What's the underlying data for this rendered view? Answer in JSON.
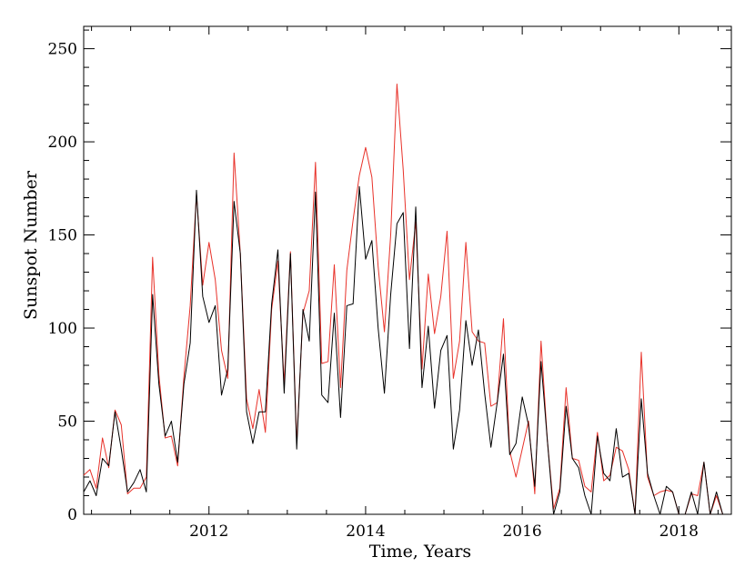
{
  "chart_data": {
    "type": "line",
    "title": "",
    "xlabel": "Time, Years",
    "ylabel": "Sunspot Number",
    "xlim": [
      2010.4,
      2018.67
    ],
    "ylim": [
      0,
      262
    ],
    "xticks": [
      2012,
      2014,
      2016,
      2018
    ],
    "yticks": [
      0,
      50,
      100,
      150,
      200,
      250
    ],
    "xtick_labels": [
      "2012",
      "2014",
      "2016",
      "2018"
    ],
    "ytick_labels": [
      "0",
      "50",
      "100",
      "150",
      "200",
      "250"
    ],
    "grid": false,
    "legend": "none",
    "series": [
      {
        "color": "#000000",
        "x": [
          2010.4,
          2010.48,
          2010.56,
          2010.64,
          2010.72,
          2010.8,
          2010.88,
          2010.96,
          2011.04,
          2011.12,
          2011.2,
          2011.28,
          2011.36,
          2011.44,
          2011.52,
          2011.6,
          2011.68,
          2011.76,
          2011.84,
          2011.92,
          2012.0,
          2012.08,
          2012.16,
          2012.24,
          2012.32,
          2012.4,
          2012.48,
          2012.56,
          2012.64,
          2012.72,
          2012.8,
          2012.88,
          2012.96,
          2013.04,
          2013.12,
          2013.2,
          2013.28,
          2013.36,
          2013.44,
          2013.52,
          2013.6,
          2013.68,
          2013.76,
          2013.84,
          2013.92,
          2014.0,
          2014.08,
          2014.16,
          2014.24,
          2014.32,
          2014.4,
          2014.48,
          2014.56,
          2014.64,
          2014.72,
          2014.8,
          2014.88,
          2014.96,
          2015.04,
          2015.12,
          2015.2,
          2015.28,
          2015.36,
          2015.44,
          2015.52,
          2015.6,
          2015.68,
          2015.76,
          2015.84,
          2015.92,
          2016.0,
          2016.08,
          2016.16,
          2016.24,
          2016.32,
          2016.4,
          2016.48,
          2016.56,
          2016.64,
          2016.72,
          2016.8,
          2016.88,
          2016.96,
          2017.04,
          2017.12,
          2017.2,
          2017.28,
          2017.36,
          2017.44,
          2017.52,
          2017.6,
          2017.68,
          2017.76,
          2017.84,
          2017.92,
          2018.0,
          2018.08,
          2018.16,
          2018.24,
          2018.32,
          2018.4,
          2018.48,
          2018.56,
          2018.64
        ],
        "y": [
          12,
          18,
          10,
          30,
          26,
          55,
          35,
          12,
          17,
          24,
          12,
          118,
          70,
          42,
          50,
          28,
          70,
          92,
          174,
          117,
          103,
          112,
          64,
          78,
          168,
          140,
          55,
          38,
          55,
          55,
          113,
          142,
          65,
          140,
          35,
          110,
          93,
          173,
          64,
          60,
          108,
          52,
          112,
          113,
          176,
          137,
          147,
          100,
          65,
          118,
          156,
          162,
          89,
          165,
          68,
          101,
          57,
          88,
          96,
          35,
          56,
          104,
          80,
          99,
          65,
          36,
          60,
          86,
          32,
          38,
          63,
          48,
          15,
          82,
          40,
          0,
          12,
          58,
          30,
          25,
          10,
          0,
          42,
          22,
          18,
          46,
          20,
          22,
          0,
          62,
          22,
          10,
          0,
          15,
          12,
          0,
          0,
          12,
          0,
          28,
          0,
          12,
          0,
          0
        ]
      },
      {
        "color": "#e8322a",
        "x": [
          2010.4,
          2010.48,
          2010.56,
          2010.64,
          2010.72,
          2010.8,
          2010.88,
          2010.96,
          2011.04,
          2011.12,
          2011.2,
          2011.28,
          2011.36,
          2011.44,
          2011.52,
          2011.6,
          2011.68,
          2011.76,
          2011.84,
          2011.92,
          2012.0,
          2012.08,
          2012.16,
          2012.24,
          2012.32,
          2012.4,
          2012.48,
          2012.56,
          2012.64,
          2012.72,
          2012.8,
          2012.88,
          2012.96,
          2013.04,
          2013.12,
          2013.2,
          2013.28,
          2013.36,
          2013.44,
          2013.52,
          2013.6,
          2013.68,
          2013.76,
          2013.84,
          2013.92,
          2014.0,
          2014.08,
          2014.16,
          2014.24,
          2014.32,
          2014.4,
          2014.48,
          2014.56,
          2014.64,
          2014.72,
          2014.8,
          2014.88,
          2014.96,
          2015.04,
          2015.12,
          2015.2,
          2015.28,
          2015.36,
          2015.44,
          2015.52,
          2015.6,
          2015.68,
          2015.76,
          2015.84,
          2015.92,
          2016.0,
          2016.08,
          2016.16,
          2016.24,
          2016.32,
          2016.4,
          2016.48,
          2016.56,
          2016.64,
          2016.72,
          2016.8,
          2016.88,
          2016.96,
          2017.04,
          2017.12,
          2017.2,
          2017.28,
          2017.36,
          2017.44,
          2017.52,
          2017.6,
          2017.68,
          2017.76,
          2017.84,
          2017.92,
          2018.0,
          2018.08,
          2018.16,
          2018.24,
          2018.32,
          2018.4,
          2018.48,
          2018.56,
          2018.64
        ],
        "y": [
          21,
          24,
          14,
          41,
          25,
          56,
          48,
          11,
          14,
          14,
          20,
          138,
          75,
          41,
          42,
          26,
          74,
          112,
          172,
          123,
          146,
          126,
          88,
          73,
          194,
          140,
          62,
          46,
          67,
          44,
          110,
          136,
          70,
          141,
          38,
          108,
          120,
          189,
          81,
          82,
          134,
          68,
          131,
          158,
          182,
          197,
          181,
          133,
          98,
          150,
          231,
          185,
          126,
          157,
          78,
          129,
          97,
          117,
          152,
          73,
          93,
          146,
          98,
          93,
          92,
          58,
          60,
          105,
          34,
          20,
          35,
          50,
          11,
          93,
          40,
          3,
          14,
          68,
          30,
          29,
          15,
          12,
          44,
          18,
          21,
          36,
          34,
          24,
          0,
          87,
          20,
          10,
          12,
          13,
          12,
          0,
          0,
          11,
          10,
          28,
          0,
          10,
          0,
          0
        ]
      }
    ]
  }
}
